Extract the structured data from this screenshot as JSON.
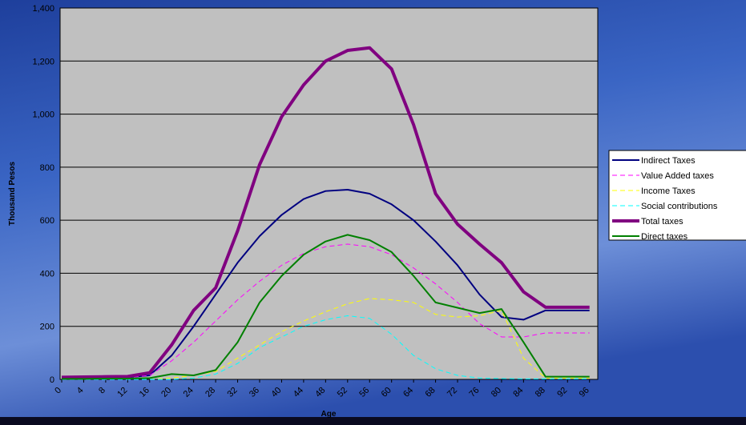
{
  "chart_data": {
    "type": "line",
    "x_label": "Age",
    "y_label": "Thousand Pesos",
    "x": [
      0,
      4,
      8,
      12,
      16,
      20,
      24,
      28,
      32,
      36,
      40,
      44,
      48,
      52,
      56,
      60,
      64,
      68,
      72,
      76,
      80,
      84,
      88,
      92,
      96
    ],
    "xlim": [
      0,
      97.5
    ],
    "xticks": [
      0,
      4,
      8,
      12,
      16,
      20,
      24,
      28,
      32,
      36,
      40,
      44,
      48,
      52,
      56,
      60,
      64,
      68,
      72,
      76,
      80,
      84,
      88,
      92,
      96
    ],
    "ylim": [
      0,
      1400
    ],
    "yticks": [
      0,
      200,
      400,
      600,
      800,
      {
        "value": 1000,
        "label": "1,000"
      },
      {
        "value": 1200,
        "label": "1,200"
      },
      {
        "value": 1400,
        "label": "1,400"
      }
    ],
    "grid": true,
    "legend": "right",
    "series": [
      {
        "name": "Indirect Taxes",
        "color": "#000080",
        "dash": "solid",
        "width": 2,
        "values": [
          5,
          6,
          7,
          8,
          15,
          90,
          200,
          320,
          440,
          540,
          620,
          680,
          710,
          715,
          700,
          660,
          600,
          520,
          430,
          320,
          235,
          225,
          260,
          260,
          260
        ]
      },
      {
        "name": "Value Added taxes",
        "color": "#ff00ff",
        "dash": "dashed",
        "width": 1,
        "values": [
          4,
          5,
          6,
          7,
          15,
          70,
          140,
          220,
          300,
          370,
          430,
          475,
          500,
          510,
          500,
          470,
          420,
          360,
          290,
          210,
          160,
          160,
          175,
          175,
          175
        ]
      },
      {
        "name": "Income Taxes",
        "color": "#ffff00",
        "dash": "dashed",
        "width": 1,
        "values": [
          0,
          0,
          0,
          0,
          0,
          5,
          15,
          30,
          80,
          130,
          180,
          220,
          255,
          285,
          305,
          300,
          290,
          245,
          235,
          240,
          260,
          80,
          5,
          5,
          5
        ]
      },
      {
        "name": "Social contributions",
        "color": "#00ffff",
        "dash": "dashed",
        "width": 1,
        "values": [
          0,
          0,
          0,
          0,
          0,
          0,
          5,
          20,
          60,
          120,
          160,
          200,
          225,
          240,
          230,
          170,
          90,
          40,
          15,
          5,
          3,
          2,
          2,
          2,
          2
        ]
      },
      {
        "name": "Total taxes",
        "color": "#800080",
        "dash": "solid",
        "width": 4,
        "values": [
          8,
          9,
          10,
          11,
          25,
          130,
          260,
          345,
          560,
          810,
          990,
          1110,
          1200,
          1240,
          1250,
          1170,
          960,
          700,
          585,
          510,
          440,
          330,
          272,
          272,
          272
        ]
      },
      {
        "name": "Direct taxes",
        "color": "#008000",
        "dash": "solid",
        "width": 2,
        "values": [
          2,
          2,
          3,
          3,
          5,
          20,
          15,
          35,
          140,
          290,
          390,
          470,
          520,
          545,
          525,
          480,
          390,
          290,
          270,
          250,
          265,
          140,
          10,
          10,
          10
        ]
      }
    ]
  }
}
